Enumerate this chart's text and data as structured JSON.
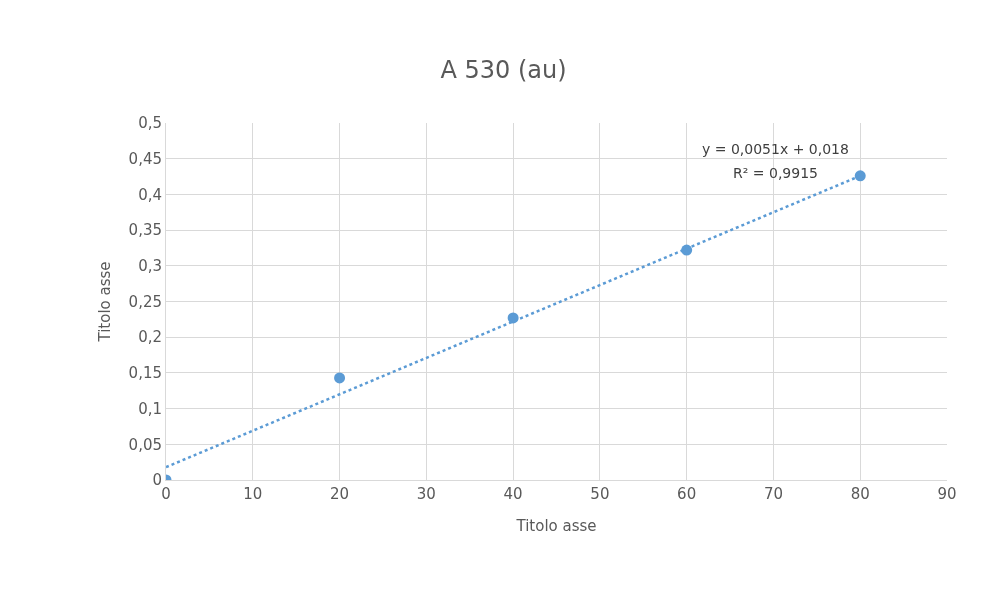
{
  "chart_data": {
    "type": "scatter",
    "title": "A 530 (au)",
    "xlabel": "Titolo asse",
    "ylabel": "Titolo asse",
    "series": [
      {
        "color": "#5b9bd5",
        "x": [
          0,
          20,
          40,
          60,
          80
        ],
        "values": [
          0,
          0.143,
          0.227,
          0.322,
          0.426
        ]
      },
      {
        "type": "line",
        "color": "#5b9bd5",
        "x": [
          0,
          80
        ],
        "values": [
          0.018,
          0.426
        ],
        "line_style": "dotted",
        "marker": "none"
      }
    ],
    "annotations": [
      "y = 0,0051x + 0,018",
      "R² = 0,9915"
    ],
    "xlim": [
      0,
      90
    ],
    "xticks": [
      0,
      10,
      20,
      30,
      40,
      50,
      60,
      70,
      80,
      90
    ],
    "ylim": [
      0,
      0.5
    ],
    "yticks": [
      0,
      {
        "value": 0.05,
        "label": "0,05"
      },
      {
        "value": 0.1,
        "label": "0,1"
      },
      {
        "value": 0.15,
        "label": "0,15"
      },
      {
        "value": 0.2,
        "label": "0,2"
      },
      {
        "value": 0.25,
        "label": "0,25"
      },
      {
        "value": 0.3,
        "label": "0,3"
      },
      {
        "value": 0.35,
        "label": "0,35"
      },
      {
        "value": 0.4,
        "label": "0,4"
      },
      {
        "value": 0.45,
        "label": "0,45"
      },
      {
        "value": 0.5,
        "label": "0,5"
      }
    ],
    "grid": true,
    "marker": "circle"
  }
}
